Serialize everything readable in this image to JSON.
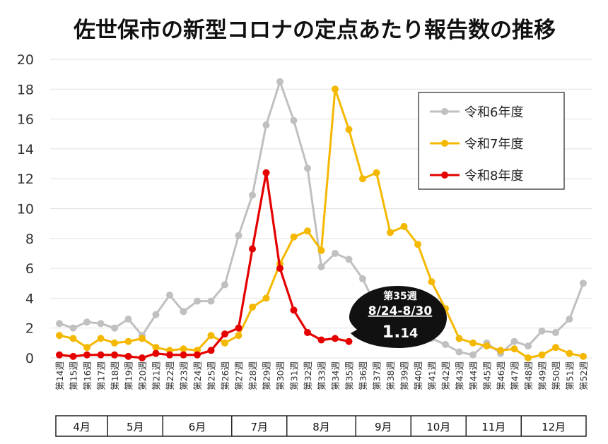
{
  "chart_data": {
    "type": "line",
    "title": "佐世保市の新型コロナの定点あたり報告数の推移",
    "ylim": [
      0,
      20
    ],
    "y_ticks": [
      0,
      2,
      4,
      6,
      8,
      10,
      12,
      14,
      16,
      18,
      20
    ],
    "grid": true,
    "legend_position": "top-right",
    "x": [
      "第14週",
      "第15週",
      "第16週",
      "第17週",
      "第18週",
      "第19週",
      "第20週",
      "第21週",
      "第22週",
      "第23週",
      "第24週",
      "第25週",
      "第26週",
      "第27週",
      "第28週",
      "第29週",
      "第30週",
      "第31週",
      "第32週",
      "第33週",
      "第34週",
      "第35週",
      "第36週",
      "第37週",
      "第38週",
      "第39週",
      "第40週",
      "第41週",
      "第42週",
      "第43週",
      "第44週",
      "第45週",
      "第46週",
      "第47週",
      "第48週",
      "第49週",
      "第50週",
      "第51週",
      "第52週"
    ],
    "months": [
      {
        "label": "4月",
        "start": 0,
        "end": 4
      },
      {
        "label": "5月",
        "start": 4,
        "end": 8
      },
      {
        "label": "6月",
        "start": 8,
        "end": 13
      },
      {
        "label": "7月",
        "start": 13,
        "end": 17
      },
      {
        "label": "8月",
        "start": 17,
        "end": 22
      },
      {
        "label": "9月",
        "start": 22,
        "end": 26
      },
      {
        "label": "10月",
        "start": 26,
        "end": 30
      },
      {
        "label": "11月",
        "start": 30,
        "end": 34
      },
      {
        "label": "12月",
        "start": 34,
        "end": 39
      }
    ],
    "series": [
      {
        "name": "令和6年度",
        "color": "#c0c0c0",
        "values": [
          2.3,
          2.0,
          2.4,
          2.3,
          2.0,
          2.6,
          1.5,
          2.9,
          4.2,
          3.1,
          3.8,
          3.8,
          4.9,
          8.2,
          10.9,
          15.6,
          18.5,
          15.9,
          12.7,
          6.1,
          7.0,
          6.6,
          5.3,
          3.4,
          2.2,
          1.6,
          1.5,
          1.3,
          0.9,
          0.4,
          0.2,
          1.0,
          0.3,
          1.1,
          0.8,
          1.8,
          1.7,
          2.6,
          5.0
        ]
      },
      {
        "name": "令和7年度",
        "color": "#f5b800",
        "values": [
          1.5,
          1.3,
          0.7,
          1.3,
          1.0,
          1.1,
          1.3,
          0.7,
          0.5,
          0.6,
          0.5,
          1.5,
          1.0,
          1.5,
          3.4,
          4.0,
          6.3,
          8.1,
          8.5,
          7.2,
          18.0,
          15.3,
          12.0,
          12.4,
          8.4,
          8.8,
          7.6,
          5.1,
          3.3,
          1.3,
          1.0,
          0.8,
          0.5,
          0.6,
          0.0,
          0.2,
          0.7,
          0.3,
          0.1
        ]
      },
      {
        "name": "令和8年度",
        "color": "#e50000",
        "values": [
          0.2,
          0.1,
          0.2,
          0.2,
          0.2,
          0.1,
          0.0,
          0.3,
          0.2,
          0.2,
          0.2,
          0.5,
          1.6,
          2.0,
          7.3,
          12.4,
          6.0,
          3.2,
          1.7,
          1.2,
          1.3,
          1.1,
          null,
          null,
          null,
          null,
          null,
          null,
          null,
          null,
          null,
          null,
          null,
          null,
          null,
          null,
          null,
          null,
          null
        ]
      }
    ],
    "annotation": {
      "week": "第35週",
      "dates": "8/24-8/30",
      "value_int": "1.",
      "value_dec": "14",
      "index": 21
    }
  }
}
